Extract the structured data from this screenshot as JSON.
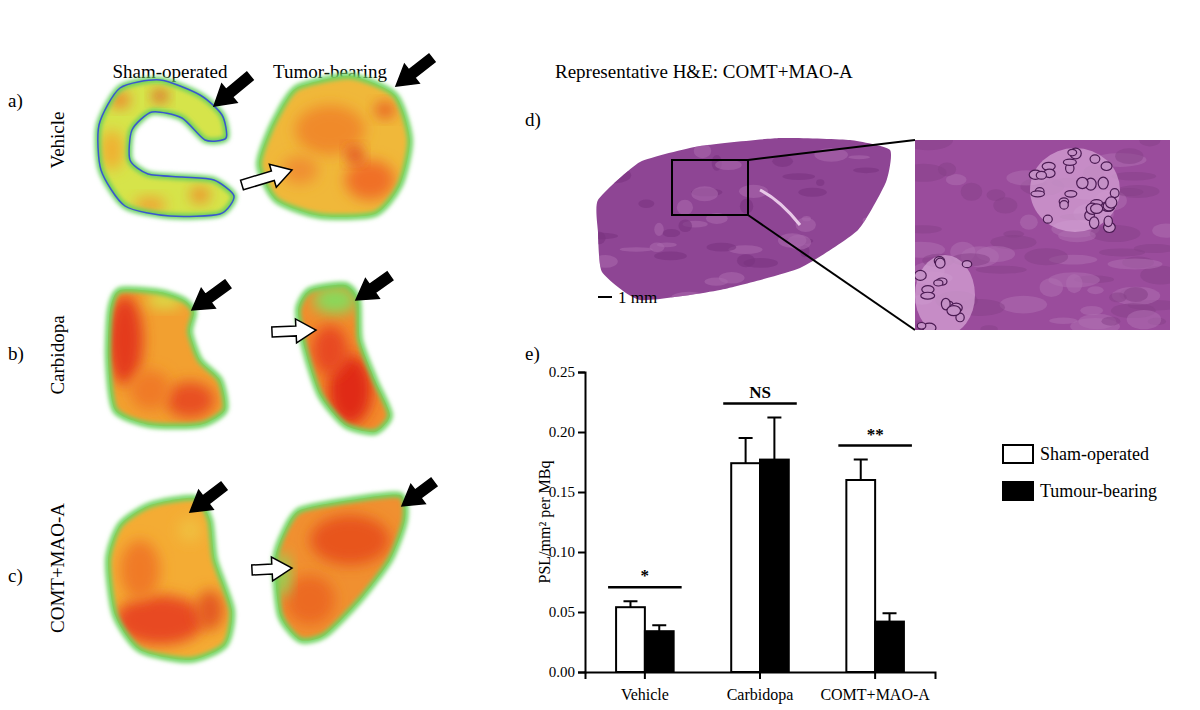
{
  "figure": {
    "column_headers": [
      "Sham-operated",
      "Tumor-bearing"
    ],
    "rows": [
      {
        "letter": "a)",
        "label": "Vehicle"
      },
      {
        "letter": "b)",
        "label": "Carbidopa"
      },
      {
        "letter": "c)",
        "label": "COMT+MAO-A"
      }
    ],
    "histology": {
      "letter": "d)",
      "title": "Representative H&E: COMT+MAO-A",
      "scale_bar": "1 mm"
    },
    "chart_letter": "e)"
  },
  "chart_data": {
    "type": "bar",
    "y_label": "PSL/mm² per MBq",
    "categories": [
      "Vehicle",
      "Carbidopa",
      "COMT+MAO-A"
    ],
    "series": [
      {
        "name": "Sham-operated",
        "color": "#ffffff",
        "values": [
          0.054,
          0.174,
          0.16
        ],
        "errors": [
          0.005,
          0.021,
          0.017
        ]
      },
      {
        "name": "Tumour-bearing",
        "color": "#000000",
        "values": [
          0.034,
          0.177,
          0.042
        ],
        "errors": [
          0.005,
          0.035,
          0.007
        ]
      }
    ],
    "ylim": [
      0,
      0.25
    ],
    "yticks": [
      {
        "value": 0,
        "label": "0.00"
      },
      {
        "value": 0.05,
        "label": "0.05"
      },
      {
        "value": 0.1,
        "label": "0.10"
      },
      {
        "value": 0.15,
        "label": "0.15"
      },
      {
        "value": 0.2,
        "label": "0.20"
      },
      {
        "value": 0.25,
        "label": "0.25"
      }
    ],
    "annotations": [
      "*",
      "NS",
      "**"
    ],
    "legend": "right"
  }
}
